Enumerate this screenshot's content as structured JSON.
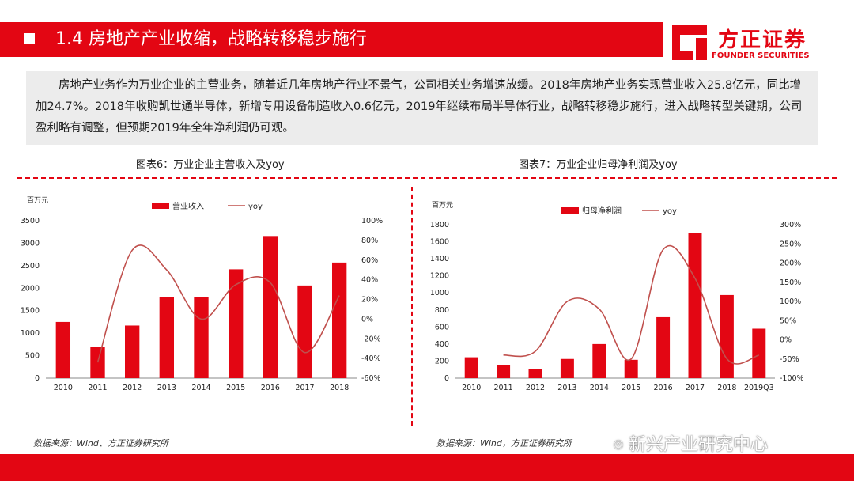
{
  "header": {
    "title": "1.4 房地产产业收缩，战略转移稳步施行"
  },
  "logo": {
    "name_cn": "方正证券",
    "name_en": "FOUNDER SECURITIES"
  },
  "summary": "房地产业务作为万业企业的主营业务，随着近几年房地产行业不景气，公司相关业务增速放缓。2018年房地产业务实现营业收入25.8亿元，同比增加24.7%。2018年收购凯世通半导体，新增专用设备制造收入0.6亿元，2019年继续布局半导体行业，战略转移稳步施行，进入战略转型关键期，公司盈利略有调整，但预期2019年全年净利润仍可观。",
  "captions": {
    "left": "图表6：万业企业主营收入及yoy",
    "right": "图表7：万业企业归母净利润及yoy"
  },
  "sources": {
    "left": "数据来源：Wind、方正证券研究所",
    "right": "数据来源：Wind，方正证券研究所"
  },
  "watermark": "新兴产业研究中心",
  "colors": {
    "brand_red": "#e30613",
    "bar": "#e30613",
    "line": "#c0504d"
  },
  "chart_data": [
    {
      "type": "bar",
      "unit": "百万元",
      "categories": [
        "2010",
        "2011",
        "2012",
        "2013",
        "2014",
        "2015",
        "2016",
        "2017",
        "2018"
      ],
      "series": [
        {
          "name": "营业收入",
          "type": "bar",
          "axis": "left",
          "values": [
            1250,
            700,
            1170,
            1800,
            1800,
            2420,
            3160,
            2060,
            2570
          ]
        },
        {
          "name": "yoy",
          "type": "line",
          "axis": "right",
          "values": [
            null,
            -44,
            70,
            50,
            0,
            35,
            37,
            -34,
            24
          ]
        }
      ],
      "ylim": [
        0,
        3500
      ],
      "yticks": [
        "0",
        "500",
        "1000",
        "1500",
        "2000",
        "2500",
        "3000",
        "3500"
      ],
      "y2lim": [
        -60,
        100
      ],
      "y2ticks": [
        "-60%",
        "-40%",
        "-20%",
        "0%",
        "20%",
        "40%",
        "60%",
        "80%",
        "100%"
      ],
      "legend": "top"
    },
    {
      "type": "bar",
      "unit": "百万元",
      "categories": [
        "2010",
        "2011",
        "2012",
        "2013",
        "2014",
        "2015",
        "2016",
        "2017",
        "2018",
        "2019Q3"
      ],
      "series": [
        {
          "name": "归母净利润",
          "type": "bar",
          "axis": "left",
          "values": [
            245,
            155,
            110,
            225,
            400,
            215,
            715,
            1700,
            975,
            580
          ]
        },
        {
          "name": "yoy",
          "type": "line",
          "axis": "right",
          "values": [
            null,
            -40,
            -30,
            100,
            80,
            -50,
            235,
            160,
            -50,
            -40
          ]
        }
      ],
      "ylim": [
        0,
        1800
      ],
      "yticks": [
        "0",
        "200",
        "400",
        "600",
        "800",
        "1000",
        "1200",
        "1400",
        "1600",
        "1800"
      ],
      "y2lim": [
        -100,
        300
      ],
      "y2ticks": [
        "-100%",
        "-50%",
        "0%",
        "50%",
        "100%",
        "150%",
        "200%",
        "250%",
        "300%"
      ],
      "legend": "top"
    }
  ]
}
